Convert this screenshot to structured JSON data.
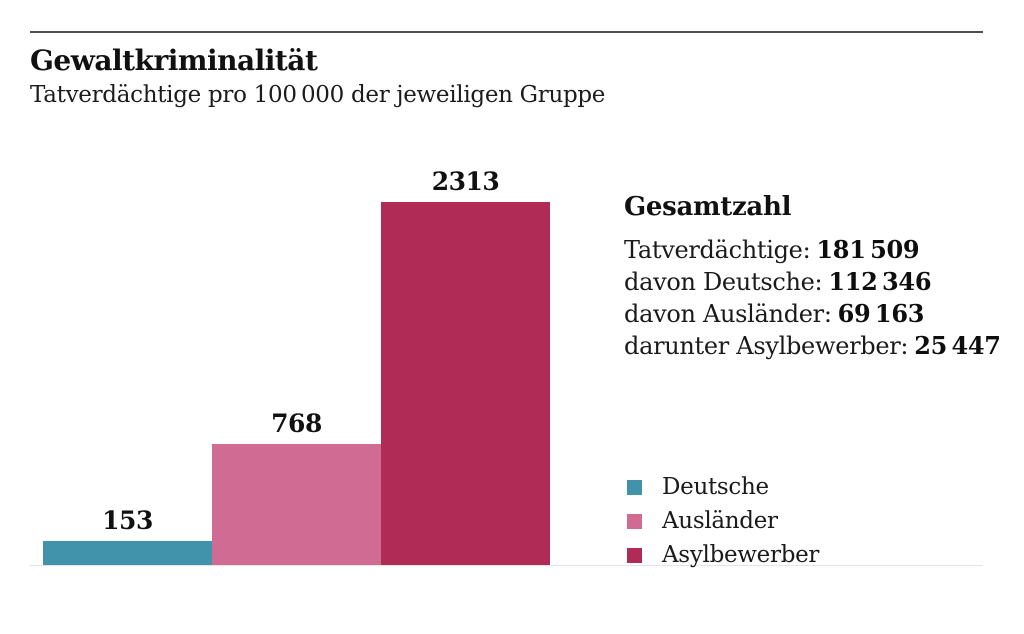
{
  "header": {
    "title": "Gewaltkriminalität",
    "subtitle": "Tatverdächtige pro 100 000 der jeweiligen Gruppe"
  },
  "chart_data": {
    "type": "bar",
    "title": "Gewaltkriminalität",
    "subtitle": "Tatverdächtige pro 100 000 der jeweiligen Gruppe",
    "categories": [
      "Deutsche",
      "Ausländer",
      "Asylbewerber"
    ],
    "values": [
      153,
      768,
      2313
    ],
    "value_labels": [
      "153",
      "768",
      "2313"
    ],
    "colors": [
      "#4192ab",
      "#d06b94",
      "#b02b55"
    ],
    "ylim": [
      0,
      2313
    ],
    "xlabel": "",
    "ylabel": "Tatverdächtige pro 100 000",
    "grid": false,
    "legend_position": "right"
  },
  "totals": {
    "heading": "Gesamtzahl",
    "rows": [
      {
        "label": "Tatverdächtige:",
        "value": "181 509"
      },
      {
        "label": "davon Deutsche:",
        "value": "112 346"
      },
      {
        "label": "davon Ausländer:",
        "value": "69 163"
      },
      {
        "label": "darunter Asylbewerber:",
        "value": "25 447"
      }
    ]
  },
  "legend": {
    "items": [
      {
        "label": "Deutsche",
        "color": "#4192ab"
      },
      {
        "label": "Ausländer",
        "color": "#d06b94"
      },
      {
        "label": "Asylbewerber",
        "color": "#b02b55"
      }
    ]
  }
}
